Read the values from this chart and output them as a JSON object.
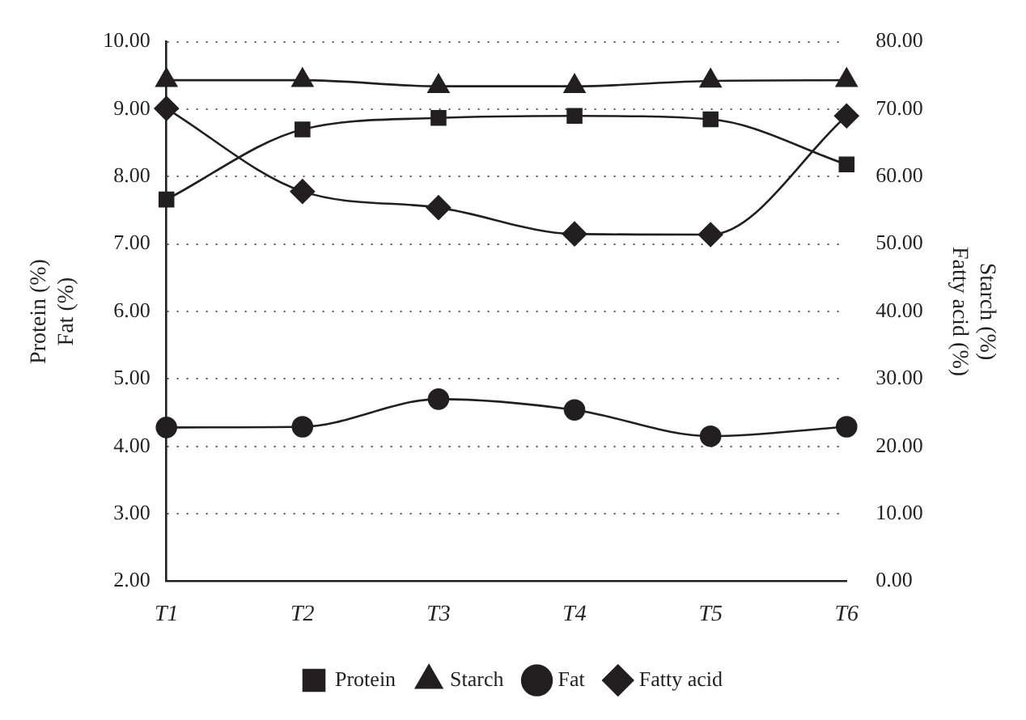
{
  "chart_data": {
    "type": "line",
    "categories": [
      "T1",
      "T2",
      "T3",
      "T4",
      "T5",
      "T6"
    ],
    "ylabel": "Protein (%)\nFat (%)",
    "y2label": "Starch (%)\nFatty acid (%)",
    "ylim": [
      2,
      10
    ],
    "yticks": [
      {
        "value": 2,
        "label": "2.00"
      },
      {
        "value": 3,
        "label": "3.00"
      },
      {
        "value": 4,
        "label": "4.00"
      },
      {
        "value": 5,
        "label": "5.00"
      },
      {
        "value": 6,
        "label": "6.00"
      },
      {
        "value": 7,
        "label": "7.00"
      },
      {
        "value": 8,
        "label": "8.00"
      },
      {
        "value": 9,
        "label": "9.00"
      },
      {
        "value": 10,
        "label": "10.00"
      }
    ],
    "y2lim": [
      0,
      80
    ],
    "y2ticks": [
      {
        "value": 0,
        "label": "0.00"
      },
      {
        "value": 10,
        "label": "10.00"
      },
      {
        "value": 20,
        "label": "20.00"
      },
      {
        "value": 30,
        "label": "30.00"
      },
      {
        "value": 40,
        "label": "40.00"
      },
      {
        "value": 50,
        "label": "50.00"
      },
      {
        "value": 60,
        "label": "60.00"
      },
      {
        "value": 70,
        "label": "70.00"
      },
      {
        "value": 80,
        "label": "80.00"
      }
    ],
    "grid": "y",
    "legend": "bottom",
    "line_style": "solid",
    "series": [
      {
        "name": "Protein",
        "color": "#231f20",
        "marker": "square",
        "values": [
          7.66,
          8.7,
          8.87,
          8.9,
          8.85,
          8.18
        ]
      },
      {
        "name": "Starch",
        "color": "#231f20",
        "marker": "triangle",
        "axis": "y2",
        "values": [
          74.3,
          74.3,
          73.4,
          73.4,
          74.2,
          74.3
        ]
      },
      {
        "name": "Fat",
        "color": "#231f20",
        "marker": "circle",
        "values": [
          4.28,
          4.29,
          4.7,
          4.54,
          4.15,
          4.29
        ]
      },
      {
        "name": "Fatty acid",
        "color": "#231f20",
        "marker": "diamond",
        "axis": "y2",
        "values": [
          70.1,
          57.8,
          55.4,
          51.5,
          51.4,
          69.0
        ]
      }
    ]
  }
}
